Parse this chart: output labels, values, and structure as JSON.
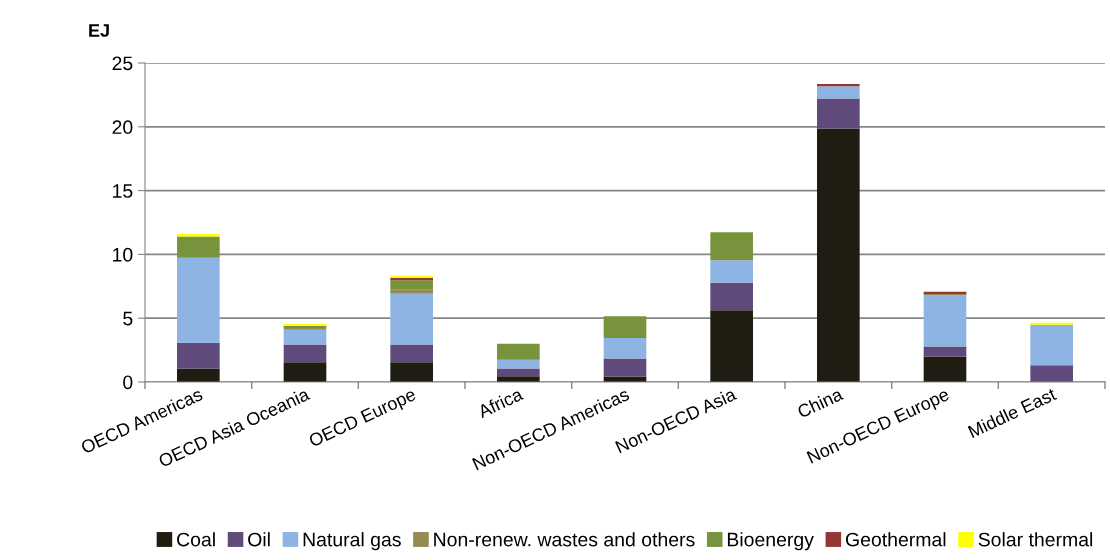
{
  "chart_data": {
    "type": "bar",
    "stacked": true,
    "ylabel": "EJ",
    "categories": [
      "OECD Americas",
      "OECD Asia Oceania",
      "OECD Europe",
      "Africa",
      "Non-OECD Americas",
      "Non-OECD Asia",
      "China",
      "Non-OECD Europe",
      "Middle East"
    ],
    "series": [
      {
        "name": "Coal",
        "color": "#1f1d12",
        "values": [
          1.06,
          1.54,
          1.54,
          0.45,
          0.43,
          5.62,
          19.87,
          2.0,
          null
        ]
      },
      {
        "name": "Oil",
        "color": "#604a7b",
        "values": [
          2.02,
          1.4,
          1.4,
          0.61,
          1.42,
          2.16,
          2.34,
          0.79,
          1.32
        ]
      },
      {
        "name": "Natural gas",
        "color": "#8eb4e3",
        "values": [
          6.64,
          1.15,
          3.98,
          0.68,
          1.6,
          1.77,
          0.97,
          3.99,
          3.16
        ]
      },
      {
        "name": "Non-renew. wastes and others",
        "color": "#948a54",
        "values": [
          0.05,
          0.15,
          0.31,
          0,
          0,
          0,
          0,
          0.12,
          0
        ]
      },
      {
        "name": "Bioenergy",
        "color": "#77933c",
        "values": [
          1.63,
          0.15,
          0.75,
          1.26,
          1.71,
          2.19,
          0,
          0,
          0
        ]
      },
      {
        "name": "Geothermal",
        "color": "#953735",
        "values": [
          0,
          null,
          0.17,
          0,
          0,
          0,
          0.17,
          0.17,
          0
        ]
      },
      {
        "name": "Solar thermal",
        "color": "#ffff00",
        "values": [
          0.2,
          0.15,
          0.17,
          0,
          0,
          0,
          0,
          0,
          0.17
        ]
      }
    ],
    "ylim": [
      0,
      25
    ],
    "yticks": [
      0,
      5,
      10,
      15,
      20,
      25
    ],
    "grid": "y",
    "legend": "bottom"
  }
}
